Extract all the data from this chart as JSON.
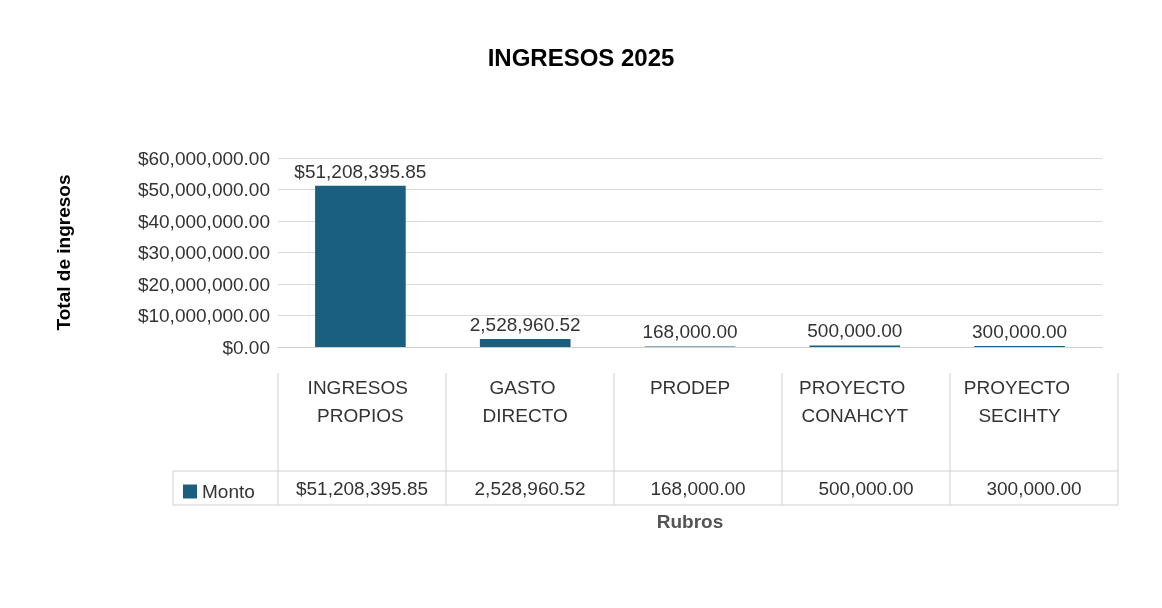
{
  "chart_data": {
    "type": "bar",
    "title": "INGRESOS 2025",
    "xlabel": "Rubros",
    "ylabel": "Total de ingresos",
    "categories": [
      "INGRESOS PROPIOS",
      "GASTO DIRECTO",
      "PRODEP",
      "PROYECTO CONAHCYT",
      "PROYECTO SECIHTY"
    ],
    "series": [
      {
        "name": "Monto",
        "color": "#1b5f80",
        "values": [
          51208395.85,
          2528960.52,
          168000,
          500000,
          300000
        ],
        "value_labels": [
          "$51,208,395.85",
          "2,528,960.52",
          "168,000.00",
          "500,000.00",
          "300,000.00"
        ]
      }
    ],
    "ylim": [
      0,
      60000000
    ],
    "yticks": [
      {
        "value": 0,
        "label": "$0.00"
      },
      {
        "value": 10000000,
        "label": "$10,000,000.00"
      },
      {
        "value": 20000000,
        "label": "$20,000,000.00"
      },
      {
        "value": 30000000,
        "label": "$30,000,000.00"
      },
      {
        "value": 40000000,
        "label": "$40,000,000.00"
      },
      {
        "value": 50000000,
        "label": "$50,000,000.00"
      },
      {
        "value": 60000000,
        "label": "$60,000,000.00"
      }
    ],
    "grid": "y",
    "legend": "bottom left"
  }
}
